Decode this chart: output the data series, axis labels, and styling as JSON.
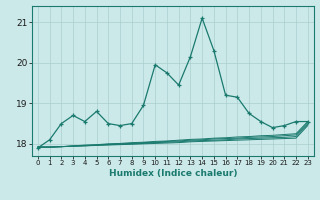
{
  "xlabel": "Humidex (Indice chaleur)",
  "ylabel": "",
  "bg_color": "#cce9ea",
  "line_color": "#1a7a6e",
  "grid_color": "#aacfcf",
  "xlim": [
    -0.5,
    23.5
  ],
  "ylim": [
    17.7,
    21.4
  ],
  "yticks": [
    18,
    19,
    20,
    21
  ],
  "xticks": [
    0,
    1,
    2,
    3,
    4,
    5,
    6,
    7,
    8,
    9,
    10,
    11,
    12,
    13,
    14,
    15,
    16,
    17,
    18,
    19,
    20,
    21,
    22,
    23
  ],
  "humidex": [
    17.9,
    18.1,
    18.5,
    18.7,
    18.55,
    18.8,
    18.5,
    18.45,
    18.5,
    18.95,
    19.95,
    19.75,
    19.45,
    20.15,
    21.1,
    20.3,
    19.2,
    19.15,
    18.75,
    18.55,
    18.4,
    18.45,
    18.55,
    18.55
  ],
  "ref_lines": [
    [
      17.92,
      17.92,
      17.93,
      17.94,
      17.95,
      17.96,
      17.97,
      17.98,
      17.99,
      18.0,
      18.01,
      18.02,
      18.03,
      18.05,
      18.06,
      18.07,
      18.08,
      18.09,
      18.1,
      18.11,
      18.12,
      18.13,
      18.14,
      18.45
    ],
    [
      17.92,
      17.92,
      17.93,
      17.94,
      17.95,
      17.97,
      17.98,
      17.99,
      18.0,
      18.01,
      18.03,
      18.04,
      18.05,
      18.07,
      18.08,
      18.09,
      18.1,
      18.12,
      18.13,
      18.14,
      18.15,
      18.16,
      18.18,
      18.48
    ],
    [
      17.92,
      17.92,
      17.93,
      17.95,
      17.96,
      17.97,
      17.99,
      18.0,
      18.01,
      18.03,
      18.04,
      18.06,
      18.07,
      18.09,
      18.1,
      18.12,
      18.13,
      18.14,
      18.16,
      18.17,
      18.18,
      18.2,
      18.22,
      18.52
    ],
    [
      17.92,
      17.92,
      17.93,
      17.95,
      17.97,
      17.98,
      18.0,
      18.01,
      18.03,
      18.04,
      18.06,
      18.07,
      18.09,
      18.11,
      18.12,
      18.14,
      18.15,
      18.17,
      18.18,
      18.2,
      18.21,
      18.23,
      18.25,
      18.55
    ]
  ]
}
